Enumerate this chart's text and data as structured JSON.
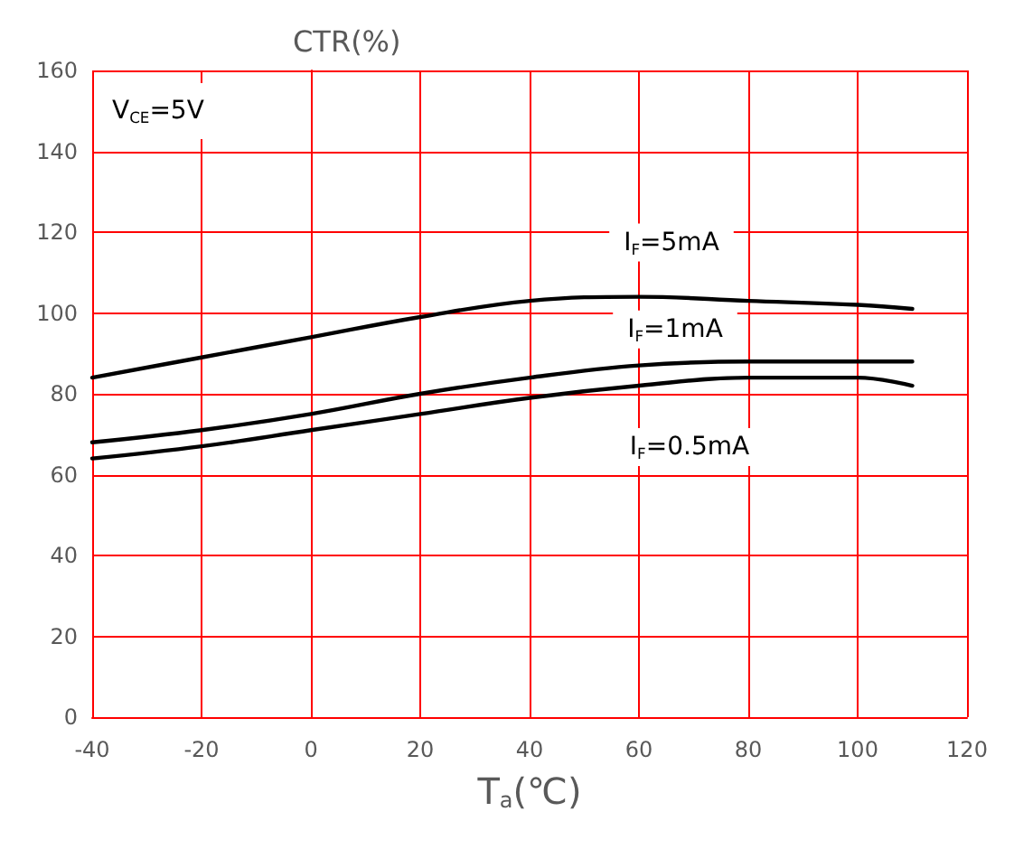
{
  "chart_data": {
    "type": "line",
    "ylabel": "CTR(%)",
    "xlabel": "T$_{a}$(℃)",
    "x": [
      -40,
      -20,
      0,
      20,
      40,
      60,
      80,
      100,
      110
    ],
    "series": [
      {
        "name": "I$_{F}$=5mA",
        "color": "#000000",
        "values": [
          84,
          89,
          94,
          99,
          103,
          104,
          103,
          102,
          101
        ]
      },
      {
        "name": "I$_{F}$=1mA",
        "color": "#000000",
        "values": [
          68,
          71,
          75,
          80,
          84,
          87,
          88,
          88,
          88
        ]
      },
      {
        "name": "I$_{F}$=0.5mA",
        "color": "#000000",
        "values": [
          64,
          67,
          71,
          75,
          79,
          82,
          84,
          84,
          82
        ]
      }
    ],
    "xlim": [
      -40,
      120
    ],
    "xticks": [
      -40,
      -20,
      0,
      20,
      40,
      60,
      80,
      100,
      120
    ],
    "ylim": [
      0,
      160
    ],
    "yticks": [
      0,
      20,
      40,
      60,
      80,
      100,
      120,
      140,
      160
    ],
    "grid": true,
    "legend": false,
    "marker": "none",
    "line_style": "solid",
    "annotations": [
      "V$_{CE}$=5V"
    ]
  }
}
